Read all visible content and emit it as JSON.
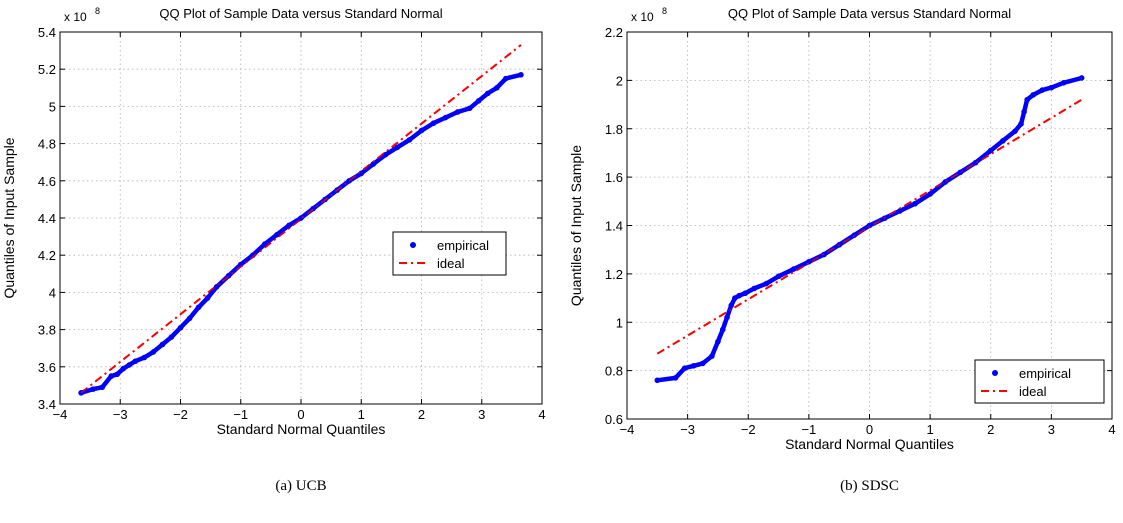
{
  "chart_data": [
    {
      "type": "scatter",
      "title": "QQ Plot of Sample Data versus Standard Normal",
      "caption": "(a) UCB",
      "xlabel": "Standard Normal Quantiles",
      "ylabel": "Quantiles of Input Sample",
      "y_exponent": "x 10",
      "y_exponent_power": "8",
      "xlim": [
        -4,
        4
      ],
      "ylim": [
        3.4,
        5.4
      ],
      "x_ticks": [
        -4,
        -3,
        -2,
        -1,
        0,
        1,
        2,
        3,
        4
      ],
      "x_tick_labels": [
        "−4",
        "−3",
        "−2",
        "−1",
        "0",
        "1",
        "2",
        "3",
        "4"
      ],
      "y_ticks": [
        3.4,
        3.6,
        3.8,
        4.0,
        4.2,
        4.4,
        4.6,
        4.8,
        5.0,
        5.2,
        5.4
      ],
      "y_tick_labels": [
        "3.4",
        "3.6",
        "3.8",
        "4",
        "4.2",
        "4.4",
        "4.6",
        "4.8",
        "5",
        "5.2",
        "5.4"
      ],
      "grid": true,
      "legend_position": "right-middle",
      "series": [
        {
          "name": "empirical",
          "kind": "points",
          "color": "#0000ff",
          "x": [
            -3.65,
            -3.45,
            -3.3,
            -3.15,
            -3.05,
            -2.95,
            -2.85,
            -2.75,
            -2.6,
            -2.45,
            -2.3,
            -2.15,
            -2.0,
            -1.85,
            -1.7,
            -1.55,
            -1.4,
            -1.2,
            -1.0,
            -0.8,
            -0.6,
            -0.4,
            -0.2,
            0.0,
            0.2,
            0.4,
            0.6,
            0.8,
            1.0,
            1.2,
            1.4,
            1.6,
            1.8,
            2.0,
            2.2,
            2.4,
            2.6,
            2.8,
            2.95,
            3.1,
            3.25,
            3.4,
            3.65
          ],
          "y": [
            3.46,
            3.48,
            3.49,
            3.55,
            3.56,
            3.59,
            3.61,
            3.63,
            3.65,
            3.68,
            3.72,
            3.76,
            3.81,
            3.86,
            3.92,
            3.97,
            4.03,
            4.09,
            4.15,
            4.2,
            4.26,
            4.31,
            4.36,
            4.4,
            4.45,
            4.5,
            4.55,
            4.6,
            4.64,
            4.69,
            4.74,
            4.78,
            4.82,
            4.87,
            4.91,
            4.94,
            4.97,
            4.99,
            5.03,
            5.07,
            5.1,
            5.15,
            5.17
          ]
        },
        {
          "name": "ideal",
          "kind": "line",
          "color": "#ff0000",
          "x": [
            -3.65,
            3.65
          ],
          "y": [
            3.46,
            5.33
          ]
        }
      ]
    },
    {
      "type": "scatter",
      "title": "QQ Plot of Sample Data versus Standard Normal",
      "caption": "(b) SDSC",
      "xlabel": "Standard Normal Quantiles",
      "ylabel": "Quantiles of Input Sample",
      "y_exponent": "x 10",
      "y_exponent_power": "8",
      "xlim": [
        -4,
        4
      ],
      "ylim": [
        0.6,
        2.2
      ],
      "x_ticks": [
        -4,
        -3,
        -2,
        -1,
        0,
        1,
        2,
        3,
        4
      ],
      "x_tick_labels": [
        "−4",
        "−3",
        "−2",
        "−1",
        "0",
        "1",
        "2",
        "3",
        "4"
      ],
      "y_ticks": [
        0.6,
        0.8,
        1.0,
        1.2,
        1.4,
        1.6,
        1.8,
        2.0,
        2.2
      ],
      "y_tick_labels": [
        "0.6",
        "0.8",
        "1",
        "1.2",
        "1.4",
        "1.6",
        "1.8",
        "2",
        "2.2"
      ],
      "grid": true,
      "legend_position": "bottom-right",
      "series": [
        {
          "name": "empirical",
          "kind": "points",
          "color": "#0000ff",
          "x": [
            -3.5,
            -3.2,
            -3.05,
            -2.9,
            -2.75,
            -2.6,
            -2.5,
            -2.42,
            -2.35,
            -2.28,
            -2.22,
            -2.15,
            -2.05,
            -1.9,
            -1.7,
            -1.5,
            -1.25,
            -1.0,
            -0.75,
            -0.5,
            -0.25,
            0.0,
            0.25,
            0.5,
            0.75,
            1.0,
            1.25,
            1.5,
            1.75,
            2.0,
            2.2,
            2.4,
            2.5,
            2.55,
            2.6,
            2.7,
            2.85,
            3.0,
            3.2,
            3.5
          ],
          "y": [
            0.76,
            0.77,
            0.81,
            0.82,
            0.83,
            0.86,
            0.92,
            0.97,
            1.02,
            1.07,
            1.1,
            1.11,
            1.12,
            1.14,
            1.16,
            1.19,
            1.22,
            1.25,
            1.28,
            1.32,
            1.36,
            1.4,
            1.43,
            1.46,
            1.49,
            1.53,
            1.58,
            1.62,
            1.66,
            1.71,
            1.75,
            1.79,
            1.82,
            1.87,
            1.92,
            1.94,
            1.96,
            1.97,
            1.99,
            2.01
          ]
        },
        {
          "name": "ideal",
          "kind": "line",
          "color": "#ff0000",
          "x": [
            -3.5,
            3.5
          ],
          "y": [
            0.87,
            1.92
          ]
        }
      ]
    }
  ]
}
